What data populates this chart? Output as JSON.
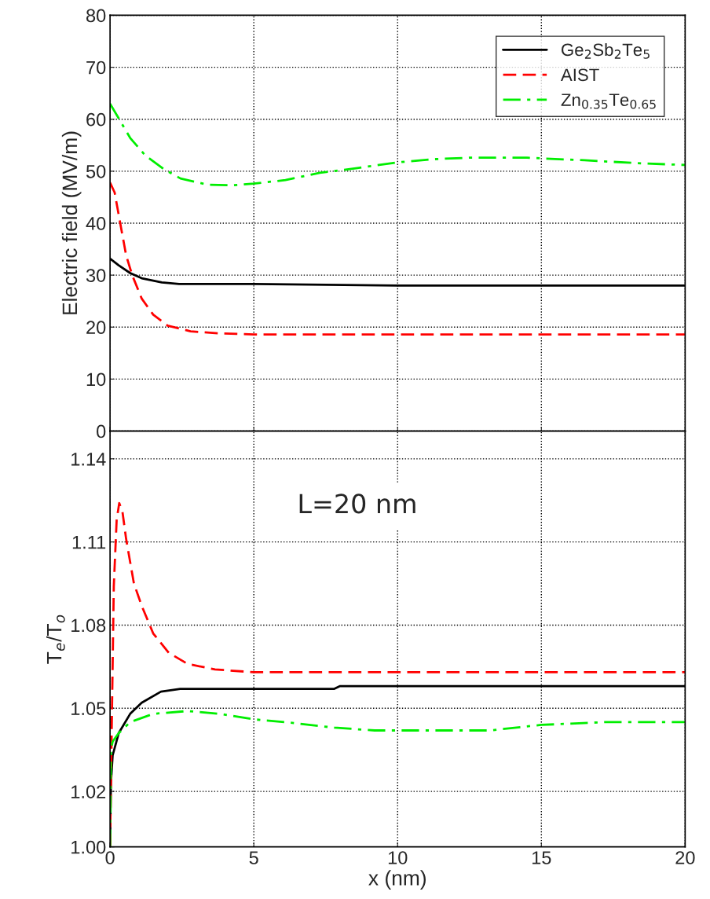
{
  "chart_data": [
    {
      "type": "line",
      "ylabel": "Electric field (MV/m)",
      "xlim": [
        0,
        20
      ],
      "xticks": [
        0,
        5,
        10,
        15,
        20
      ],
      "ylim": [
        0,
        80
      ],
      "yticks": [
        0,
        10,
        20,
        30,
        40,
        50,
        60,
        70,
        80
      ],
      "tick_labels": "y",
      "grid": true,
      "legend": "top right",
      "series": [
        {
          "name": "Ge$_{2}$Sb$_{2}$Te$_{5}$",
          "color": "#000000",
          "line_style": "solid",
          "x": [
            0,
            0.3,
            0.7,
            1.1,
            1.8,
            2.4,
            5,
            10,
            20
          ],
          "values": [
            33.2,
            31.9,
            30.4,
            29.4,
            28.6,
            28.3,
            28.3,
            28.0,
            28.0
          ]
        },
        {
          "name": "AIST",
          "color": "#ff0000",
          "line_style": "dashed",
          "x": [
            0,
            0.16,
            0.36,
            0.56,
            0.77,
            1.1,
            1.5,
            2.0,
            2.8,
            3.8,
            5,
            20
          ],
          "values": [
            47.8,
            45.9,
            39.8,
            33.8,
            30.0,
            25.5,
            22.4,
            20.3,
            19.2,
            18.8,
            18.6,
            18.6
          ]
        },
        {
          "name": "Zn$_{0.35}$Te$_{0.65}$",
          "color": "#00ee00",
          "line_style": "dashdot",
          "x": [
            0,
            0.7,
            1.23,
            1.9,
            2.45,
            3.4,
            4.3,
            5,
            6.1,
            7.3,
            8.6,
            10,
            11.2,
            12.5,
            14.5,
            16.5,
            18.5,
            20
          ],
          "values": [
            63.0,
            56.4,
            53.0,
            50.3,
            48.6,
            47.4,
            47.3,
            47.6,
            48.3,
            49.7,
            50.6,
            51.7,
            52.3,
            52.6,
            52.6,
            52.1,
            51.5,
            51.2
          ]
        }
      ]
    },
    {
      "type": "line",
      "xlabel": "x (nm)",
      "ylabel": "T$_{e}$/T$_{o}$",
      "xlim": [
        0,
        20
      ],
      "xticks": [
        0,
        5,
        10,
        15,
        20
      ],
      "ylim": [
        1.0,
        1.15
      ],
      "yticks": [
        {
          "value": 1.0,
          "label": "1.00"
        },
        1.02,
        1.05,
        1.08,
        1.11,
        1.14
      ],
      "grid": true,
      "annotations": [
        "L=20 nm"
      ],
      "series": [
        {
          "color": "#000000",
          "line_style": "solid",
          "x": [
            0,
            0.03,
            0.09,
            0.3,
            0.7,
            1.1,
            1.77,
            2.44,
            3.38,
            7.8,
            8,
            20
          ],
          "values": [
            1.0,
            1.023,
            1.033,
            1.041,
            1.048,
            1.052,
            1.056,
            1.057,
            1.057,
            1.057,
            1.058,
            1.058
          ]
        },
        {
          "color": "#ff0000",
          "line_style": "dashed",
          "x": [
            0,
            0.05,
            0.13,
            0.23,
            0.32,
            0.43,
            0.56,
            0.83,
            1.1,
            1.5,
            2.04,
            2.7,
            3.65,
            5,
            10,
            20
          ],
          "values": [
            1.0,
            1.037,
            1.094,
            1.118,
            1.124,
            1.121,
            1.111,
            1.095,
            1.087,
            1.077,
            1.07,
            1.066,
            1.064,
            1.063,
            1.063,
            1.063
          ]
        },
        {
          "color": "#00ee00",
          "line_style": "dashdot",
          "x": [
            0,
            0.03,
            0.09,
            0.3,
            0.7,
            1.5,
            2.7,
            3.8,
            5,
            6.1,
            7.8,
            9.2,
            11.8,
            13.2,
            15,
            17.2,
            20
          ],
          "values": [
            1.0,
            1.035,
            1.038,
            1.041,
            1.045,
            1.048,
            1.049,
            1.048,
            1.046,
            1.045,
            1.043,
            1.042,
            1.042,
            1.042,
            1.044,
            1.045,
            1.045
          ]
        }
      ]
    }
  ]
}
